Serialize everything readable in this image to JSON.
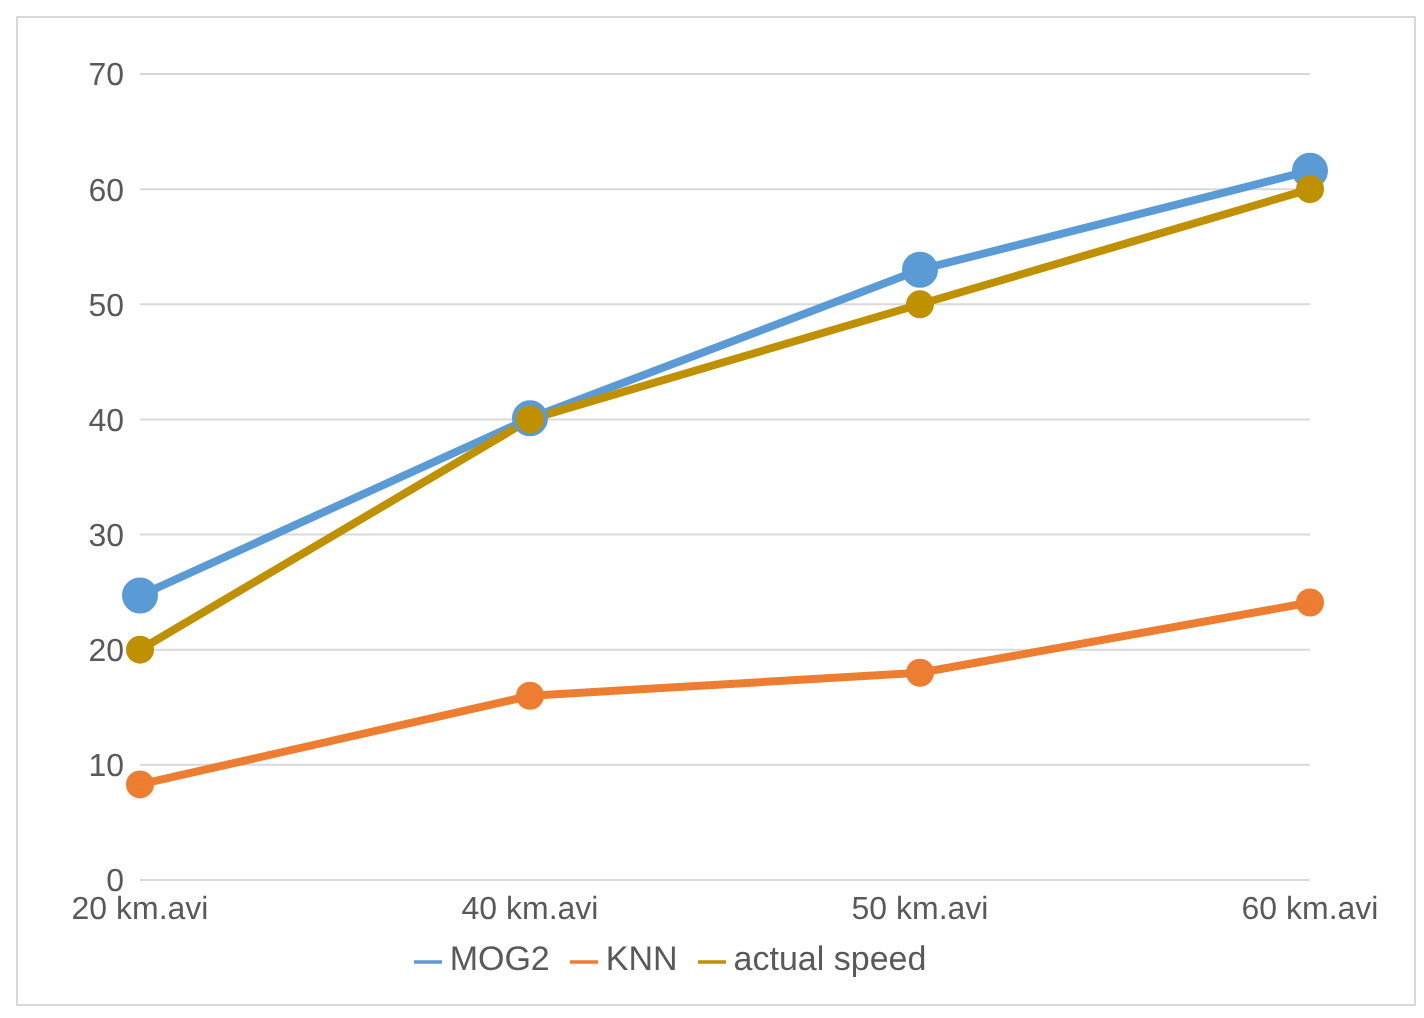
{
  "chart_data": {
    "type": "line",
    "categories": [
      "20 km.avi",
      "40 km.avi",
      "50 km.avi",
      "60 km.avi"
    ],
    "series": [
      {
        "name": "MOG2",
        "color": "#5b9bd5",
        "values": [
          24.7,
          40.1,
          53,
          61.6
        ]
      },
      {
        "name": "KNN",
        "color": "#ed7d31",
        "values": [
          8.3,
          16,
          18,
          24.1
        ]
      },
      {
        "name": "actual speed",
        "color": "#bf9000",
        "values": [
          20,
          40,
          50,
          60
        ]
      }
    ],
    "ylim": [
      0,
      70
    ],
    "yticks": [
      0,
      10,
      20,
      30,
      40,
      50,
      60,
      70
    ],
    "grid": "y",
    "legend": "bottom",
    "marker": "circle",
    "line_style": "solid"
  }
}
